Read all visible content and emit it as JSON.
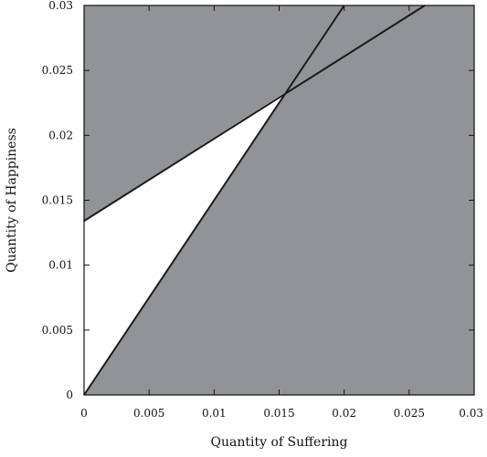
{
  "chart_data": {
    "type": "line",
    "title": "",
    "xlabel": "Quantity of Suffering",
    "ylabel": "Quantity of Happiness",
    "xlim": [
      0,
      0.03
    ],
    "ylim": [
      0,
      0.03
    ],
    "x_ticks": [
      0,
      0.005,
      0.01,
      0.015,
      0.02,
      0.025,
      0.03
    ],
    "x_tick_labels": [
      "0",
      "0.005",
      "0.01",
      "0.015",
      "0.02",
      "0.025",
      "0.03"
    ],
    "y_ticks": [
      0,
      0.005,
      0.01,
      0.015,
      0.02,
      0.025,
      0.03
    ],
    "y_tick_labels": [
      "0",
      "0.005",
      "0.01",
      "0.015",
      "0.02",
      "0.025",
      "0.03"
    ],
    "grid": false,
    "series": [
      {
        "points": [
          [
            0,
            0
          ],
          [
            0.02,
            0.03
          ]
        ]
      },
      {
        "points": [
          [
            0,
            0.0134
          ],
          [
            0.0262,
            0.03
          ]
        ]
      }
    ],
    "regions": [
      {
        "fill": "#ffffff",
        "points": [
          [
            0,
            0
          ],
          [
            0.0156,
            0.0234
          ],
          [
            0,
            0.0134
          ]
        ]
      }
    ],
    "colors": {
      "background_fill": "#929396",
      "line": "#1a1a1a",
      "axis": "#111111"
    }
  }
}
